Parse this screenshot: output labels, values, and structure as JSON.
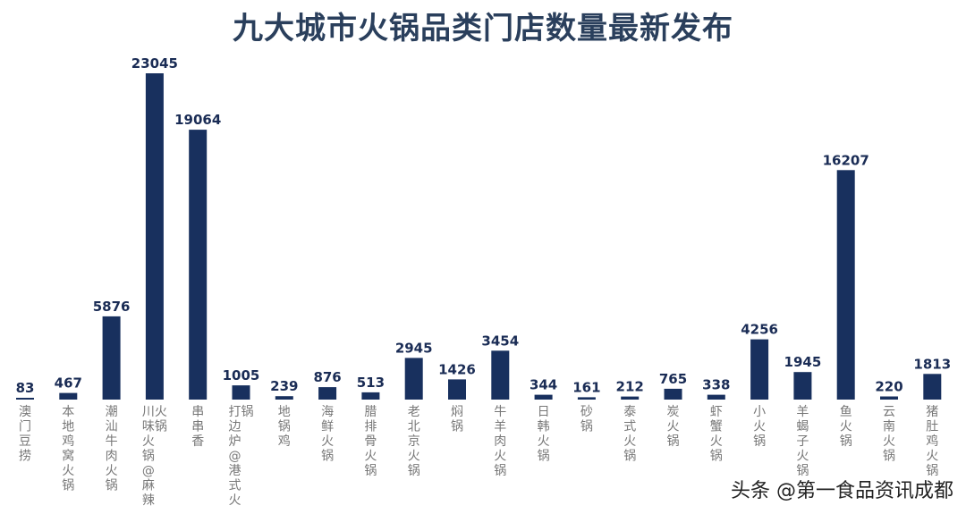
{
  "chart_data": {
    "type": "bar",
    "title": "九大城市火锅品类门店数量最新发布",
    "bar_color": "#18305e",
    "categories": [
      "澳门豆捞",
      "本地鸡窝火锅",
      "潮汕牛肉火锅",
      "川味火锅@麻辣火锅",
      "串串香",
      "打边炉@港式火锅",
      "地锅鸡",
      "海鲜火锅",
      "腊排骨火锅",
      "老北京火锅",
      "焖锅",
      "牛羊肉火锅",
      "日韩火锅",
      "砂锅",
      "泰式火锅",
      "炭火锅",
      "虾蟹火锅",
      "小火锅",
      "羊蝎子火锅",
      "鱼火锅",
      "云南火锅",
      "猪肚鸡火锅"
    ],
    "values": [
      83,
      467,
      5876,
      23045,
      19064,
      1005,
      239,
      876,
      513,
      2945,
      1426,
      3454,
      344,
      161,
      212,
      765,
      338,
      4256,
      1945,
      16207,
      220,
      1813
    ],
    "ylim": [
      0,
      23045
    ],
    "grid": false,
    "legend": "none"
  },
  "watermark": "头条 @第一食品资讯成都"
}
